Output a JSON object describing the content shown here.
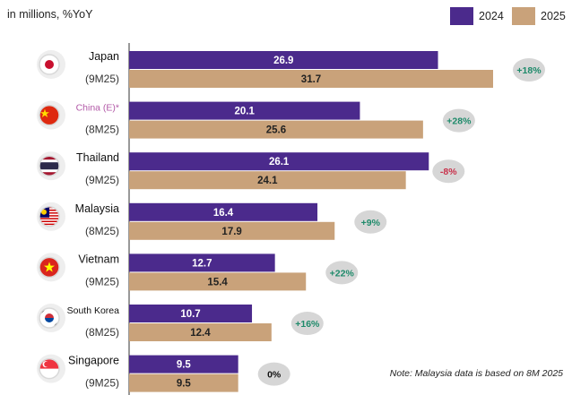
{
  "chart_data": {
    "type": "bar",
    "orientation": "horizontal",
    "subtitle": "in millions, %YoY",
    "note": "Note: Malaysia data is based on 8M 2025",
    "xlim": [
      0,
      32
    ],
    "legend_position": "top-right",
    "series": [
      {
        "name": "2024",
        "color": "#4b2a8c",
        "values": [
          26.9,
          20.1,
          26.1,
          16.4,
          12.7,
          10.7,
          9.5
        ]
      },
      {
        "name": "2025",
        "color": "#c9a27a",
        "values": [
          31.7,
          25.6,
          24.1,
          17.9,
          15.4,
          12.4,
          9.5
        ]
      }
    ],
    "categories": [
      {
        "name": "Japan",
        "period": "(9M25)",
        "change": "+18%",
        "change_color": "#1e8a6a",
        "flag": "japan-flag-icon",
        "name_color": "#111111"
      },
      {
        "name": "China (E)*",
        "period": "(8M25)",
        "change": "+28%",
        "change_color": "#1e8a6a",
        "flag": "china-flag-icon",
        "name_color": "#b35aa8"
      },
      {
        "name": "Thailand",
        "period": "(9M25)",
        "change": "-8%",
        "change_color": "#c8304a",
        "flag": "thailand-flag-icon",
        "name_color": "#111111"
      },
      {
        "name": "Malaysia",
        "period": "(8M25)",
        "change": "+9%",
        "change_color": "#1e8a6a",
        "flag": "malaysia-flag-icon",
        "name_color": "#111111"
      },
      {
        "name": "Vietnam",
        "period": "(9M25)",
        "change": "+22%",
        "change_color": "#1e8a6a",
        "flag": "vietnam-flag-icon",
        "name_color": "#111111"
      },
      {
        "name": "South Korea",
        "period": "(8M25)",
        "change": "+16%",
        "change_color": "#1e8a6a",
        "flag": "south-korea-flag-icon",
        "name_color": "#111111"
      },
      {
        "name": "Singapore",
        "period": "(9M25)",
        "change": "0%",
        "change_color": "#111111",
        "flag": "singapore-flag-icon",
        "name_color": "#111111"
      }
    ]
  }
}
